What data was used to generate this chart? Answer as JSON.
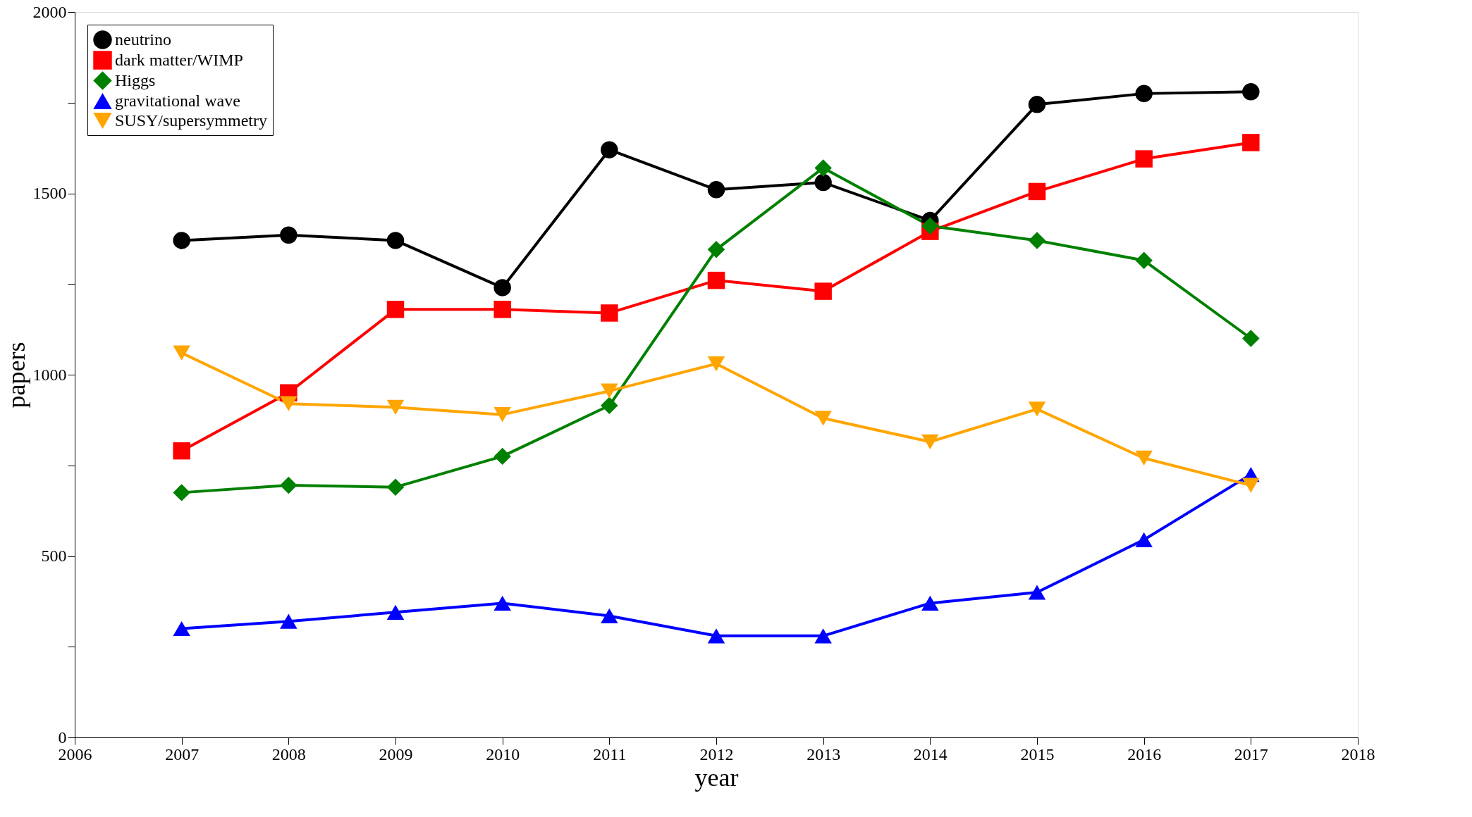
{
  "chart_data": {
    "type": "line",
    "xlabel": "year",
    "ylabel": "papers",
    "x": [
      2007,
      2008,
      2009,
      2010,
      2011,
      2012,
      2013,
      2014,
      2015,
      2016,
      2017
    ],
    "series": [
      {
        "name": "neutrino",
        "color": "#000000",
        "marker": "circle",
        "values": [
          1370,
          1385,
          1370,
          1240,
          1620,
          1510,
          1530,
          1425,
          1745,
          1775,
          1780
        ]
      },
      {
        "name": "dark matter/WIMP",
        "color": "#ff0000",
        "marker": "square",
        "values": [
          790,
          950,
          1180,
          1180,
          1170,
          1260,
          1230,
          1395,
          1505,
          1595,
          1640
        ]
      },
      {
        "name": "Higgs",
        "color": "#008000",
        "marker": "diamond",
        "values": [
          675,
          695,
          690,
          775,
          915,
          1345,
          1570,
          1410,
          1370,
          1315,
          1100
        ]
      },
      {
        "name": "gravitational wave",
        "color": "#0000ff",
        "marker": "triangle",
        "values": [
          300,
          320,
          345,
          370,
          335,
          280,
          280,
          370,
          400,
          545,
          725
        ]
      },
      {
        "name": "SUSY/supersymmetry",
        "color": "#ffa500",
        "marker": "triangle-down",
        "values": [
          1060,
          920,
          910,
          890,
          955,
          1030,
          880,
          815,
          905,
          770,
          695
        ]
      }
    ],
    "xlim": [
      2006,
      2018
    ],
    "xticks": [
      2006,
      2007,
      2008,
      2009,
      2010,
      2011,
      2012,
      2013,
      2014,
      2015,
      2016,
      2017,
      2018
    ],
    "ylim": [
      0,
      2000
    ],
    "yticks": [
      0,
      {
        "value": 250,
        "label": null
      },
      500,
      {
        "value": 750,
        "label": null
      },
      1000,
      {
        "value": 1250,
        "label": null
      },
      1500,
      {
        "value": 1750,
        "label": null
      },
      2000
    ],
    "grid": false,
    "legend": "top left",
    "line_style": "solid"
  }
}
